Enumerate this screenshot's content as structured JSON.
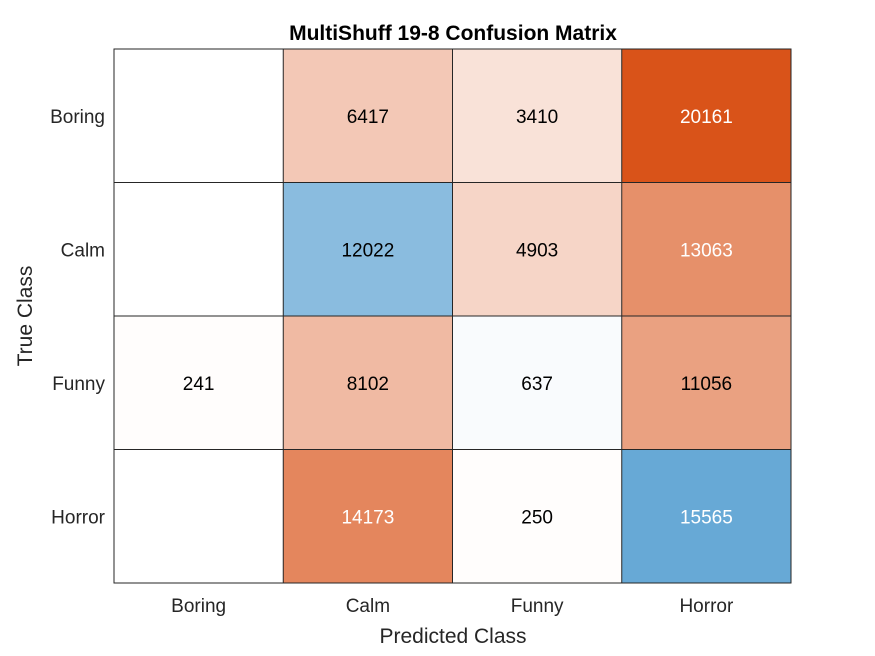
{
  "chart_data": {
    "type": "heatmap",
    "title": "MultiShuff 19-8 Confusion Matrix",
    "xlabel": "Predicted Class",
    "ylabel": "True Class",
    "x_categories": [
      "Boring",
      "Calm",
      "Funny",
      "Horror"
    ],
    "y_categories": [
      "Boring",
      "Calm",
      "Funny",
      "Horror"
    ],
    "values": [
      [
        0,
        6417,
        3410,
        20161
      ],
      [
        0,
        12022,
        4903,
        13063
      ],
      [
        241,
        8102,
        637,
        11056
      ],
      [
        0,
        14173,
        250,
        15565
      ]
    ],
    "diagonal_color": "#3a8fca",
    "off_diagonal_color": "#d95319",
    "zero_cell_color": "#ffffff",
    "grid": true,
    "legend": "none"
  }
}
